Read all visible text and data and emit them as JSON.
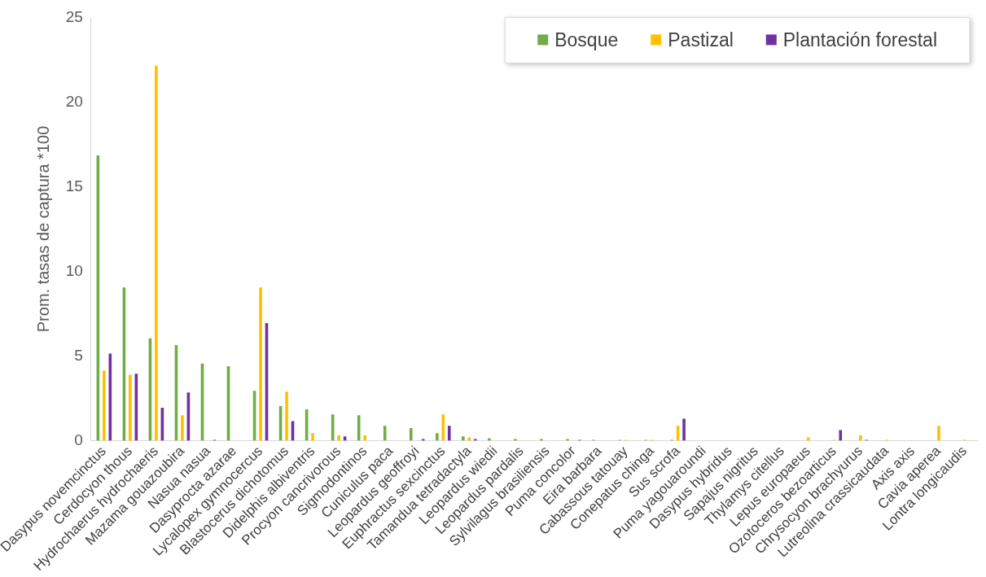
{
  "chart_data": {
    "type": "bar",
    "ylabel": "Prom. tasas de captura *100",
    "categories": [
      "Dasypus novemcinctus",
      "Cerdocyon thous",
      "Hydrochaerus hydrochaeris",
      "Mazama gouazoubira",
      "Nasua nasua",
      "Dasyprocta azarae",
      "Lycalopex gymnocercus",
      "Blastocerus dichotomus",
      "Didelphis albiventris",
      "Procyon cancrivorous",
      "Sigmodontinos",
      "Cuniculus paca",
      "Leopardus geoffroyi",
      "Euphractus sexcinctus",
      "Tamandua tetradactyla",
      "Leopardus wiedii",
      "Leopardus pardalis",
      "Sylvilagus brasiliensis",
      "Puma concolor",
      "Eira barbara",
      "Cabassous tatouay",
      "Conepatus chinga",
      "Sus scrofa",
      "Puma yagouaroundi",
      "Dasypus hybridus",
      "Sapajus nigritus",
      "Thylamys citellus",
      "Lepus europaeus",
      "Ozotoceros bezoarticus",
      "Chrysocyon brachyurus",
      "Lutreolina crassicaudata",
      "Axis axis",
      "Cavia aperea",
      "Lontra longicaudis"
    ],
    "series": [
      {
        "name": "Bosque",
        "color": "#70ad47",
        "values": [
          16.9,
          9.1,
          6.1,
          5.7,
          4.6,
          4.45,
          3.0,
          2.1,
          1.9,
          1.6,
          1.55,
          0.93,
          0.8,
          0.5,
          0.3,
          0.2,
          0.15,
          0.15,
          0.15,
          0.1,
          0.1,
          0.1,
          0.1,
          0,
          0,
          0,
          0,
          0,
          0,
          0,
          0,
          0,
          0,
          0
        ]
      },
      {
        "name": "Pastizal",
        "color": "#ffc000",
        "values": [
          4.2,
          3.95,
          22.2,
          1.55,
          0,
          0,
          9.1,
          2.95,
          0.5,
          0.38,
          0.38,
          0,
          0,
          1.6,
          0.25,
          0,
          0,
          0,
          0,
          0,
          0.1,
          0.1,
          0.93,
          0,
          0,
          0,
          0,
          0.25,
          0.1,
          0.36,
          0.1,
          0,
          0.93,
          0.1
        ]
      },
      {
        "name": "Plantación forestal",
        "color": "#7030a0",
        "values": [
          5.2,
          4.0,
          2.0,
          2.9,
          0.1,
          0,
          7.0,
          1.2,
          0,
          0.3,
          0,
          0,
          0.15,
          0.93,
          0.15,
          0,
          0,
          0,
          0.1,
          0,
          0,
          0,
          1.35,
          0,
          0,
          0,
          0,
          0,
          0.68,
          0.1,
          0,
          0,
          0,
          0
        ]
      }
    ],
    "ylim": [
      0,
      25
    ],
    "yticks": [
      0,
      5,
      10,
      15,
      20,
      25
    ],
    "legend": "top right"
  }
}
